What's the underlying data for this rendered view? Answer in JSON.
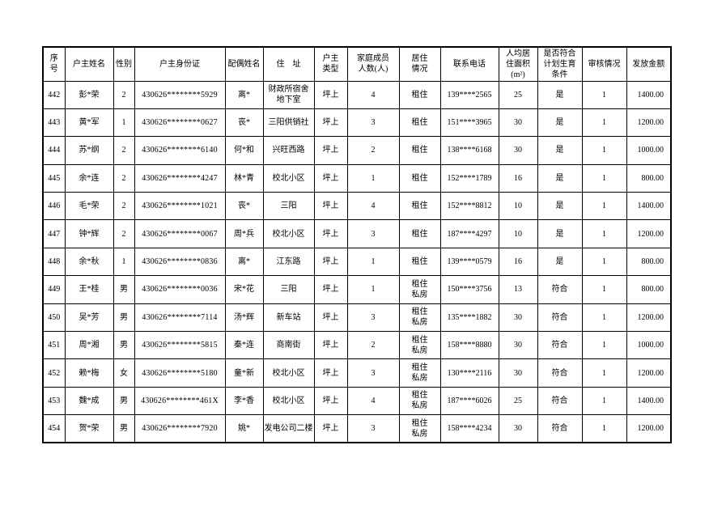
{
  "page": {
    "background_color": "#ffffff",
    "border_color": "#000000",
    "text_color": "#000000"
  },
  "table": {
    "columns": [
      {
        "key": "seq",
        "label": "序\n号"
      },
      {
        "key": "name",
        "label": "户主姓名"
      },
      {
        "key": "gender",
        "label": "性别"
      },
      {
        "key": "id",
        "label": "户主身份证"
      },
      {
        "key": "spouse",
        "label": "配偶姓名"
      },
      {
        "key": "address",
        "label": "住　址"
      },
      {
        "key": "type",
        "label": "户主\n类型"
      },
      {
        "key": "members",
        "label": "家庭成员\n人数(人)"
      },
      {
        "key": "living",
        "label": "居住\n情况"
      },
      {
        "key": "phone",
        "label": "联系电话"
      },
      {
        "key": "area",
        "label": "人均居\n住面积\n(m²)"
      },
      {
        "key": "planning",
        "label": "是否符合\n计划生育\n条件"
      },
      {
        "key": "review",
        "label": "审核情况"
      },
      {
        "key": "amount",
        "label": "发放金额"
      }
    ],
    "rows": [
      [
        "442",
        "彭*荣",
        "2",
        "430626********5929",
        "离*",
        "财政所宿舍\n地下室",
        "坪上",
        "4",
        "租住",
        "139****2565",
        "25",
        "是",
        "1",
        "1400.00"
      ],
      [
        "443",
        "黄*军",
        "1",
        "430626********0627",
        "丧*",
        "三阳供销社",
        "坪上",
        "3",
        "租住",
        "151****3965",
        "30",
        "是",
        "1",
        "1200.00"
      ],
      [
        "444",
        "苏*纲",
        "2",
        "430626********6140",
        "何*和",
        "兴旺西路",
        "坪上",
        "2",
        "租住",
        "138****6168",
        "30",
        "是",
        "1",
        "1000.00"
      ],
      [
        "445",
        "余*连",
        "2",
        "430626********4247",
        "林*青",
        "校北小区",
        "坪上",
        "1",
        "租住",
        "152****1789",
        "16",
        "是",
        "1",
        "800.00"
      ],
      [
        "446",
        "毛*荣",
        "2",
        "430626********1021",
        "丧*",
        "三阳",
        "坪上",
        "4",
        "租住",
        "152****8812",
        "10",
        "是",
        "1",
        "1400.00"
      ],
      [
        "447",
        "钟*辉",
        "2",
        "430626********0067",
        "周*兵",
        "校北小区",
        "坪上",
        "3",
        "租住",
        "187****4297",
        "10",
        "是",
        "1",
        "1200.00"
      ],
      [
        "448",
        "余*秋",
        "1",
        "430626********0836",
        "离*",
        "江东路",
        "坪上",
        "1",
        "租住",
        "139****0579",
        "16",
        "是",
        "1",
        "800.00"
      ],
      [
        "449",
        "王*桂",
        "男",
        "430626********0036",
        "宋*花",
        "三阳",
        "坪上",
        "1",
        "租住\n私房",
        "150****3756",
        "13",
        "符合",
        "1",
        "800.00"
      ],
      [
        "450",
        "吴*芳",
        "男",
        "430626********7114",
        "汤*辉",
        "新车站",
        "坪上",
        "3",
        "租住\n私房",
        "135****1882",
        "30",
        "符合",
        "1",
        "1200.00"
      ],
      [
        "451",
        "周*湘",
        "男",
        "430626********5815",
        "秦*连",
        "商南街",
        "坪上",
        "2",
        "租住\n私房",
        "158****8880",
        "30",
        "符合",
        "1",
        "1000.00"
      ],
      [
        "452",
        "赖*梅",
        "女",
        "430626********5180",
        "童*新",
        "校北小区",
        "坪上",
        "3",
        "租住\n私房",
        "130****2116",
        "30",
        "符合",
        "1",
        "1200.00"
      ],
      [
        "453",
        "魏*成",
        "男",
        "430626********461X",
        "李*香",
        "校北小区",
        "坪上",
        "4",
        "租住\n私房",
        "187****6026",
        "25",
        "符合",
        "1",
        "1400.00"
      ],
      [
        "454",
        "贺*荣",
        "男",
        "430626********7920",
        "姚*",
        "发电公司二楼",
        "坪上",
        "3",
        "租住\n私房",
        "158****4234",
        "30",
        "符合",
        "1",
        "1200.00"
      ]
    ]
  }
}
